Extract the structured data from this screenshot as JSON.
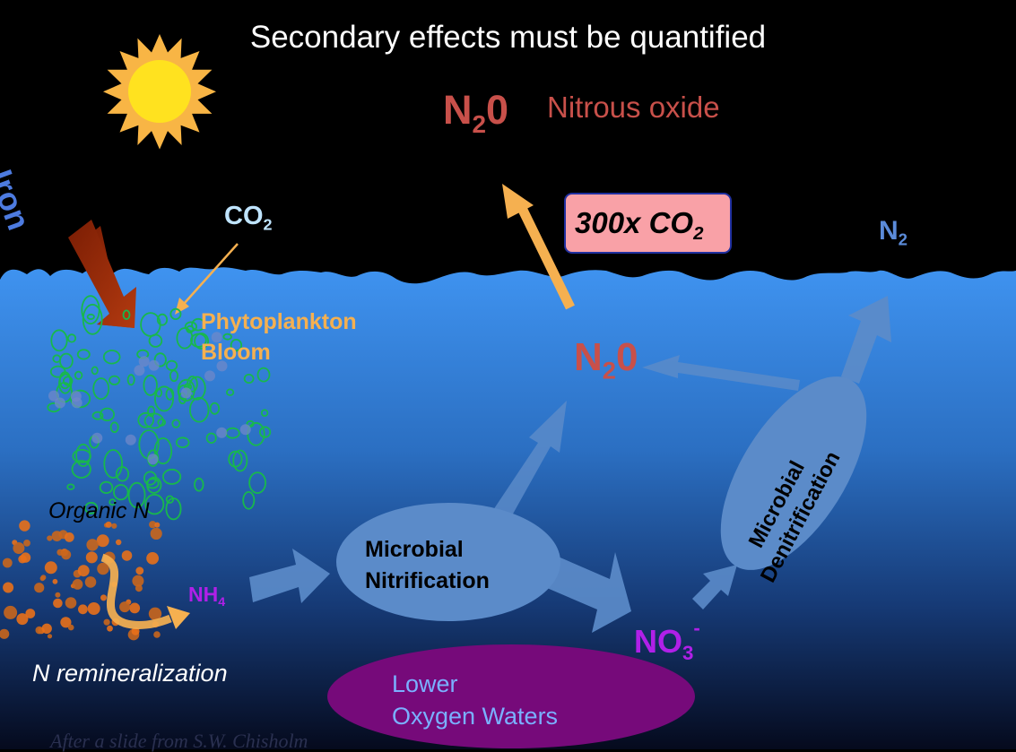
{
  "title": "Secondary effects must be quantified",
  "iron_label": "Iron",
  "co2_air": {
    "base": "CO",
    "sub": "2"
  },
  "n2o_top": {
    "base": "N",
    "sub": "2",
    "tail": "0",
    "name": "Nitrous oxide"
  },
  "co2_equiv_box": {
    "prefix": "300x CO",
    "sub": "2"
  },
  "n2_top": {
    "base": "N",
    "sub": "2"
  },
  "phytoplankton": {
    "line1": "Phytoplankton",
    "line2": "Bloom"
  },
  "n2o_mid": {
    "base": "N",
    "sub": "2",
    "tail": "0"
  },
  "organic_n": "Organic N",
  "nh4": {
    "base": "NH",
    "sub": "4"
  },
  "nitrification": {
    "line1": "Microbial",
    "line2": "Nitrification"
  },
  "denitrification": {
    "line1": "Microbial",
    "line2": "Denitrification"
  },
  "no3": {
    "base": "NO",
    "sub": "3",
    "sup": "-"
  },
  "n_remin": "N remineralization",
  "lower_oxygen": {
    "line1": "Lower",
    "line2": "Oxygen Waters"
  },
  "credit": "After a slide from S.W. Chisholm",
  "colors": {
    "sky": "#000000",
    "ocean_top": "#3f93f0",
    "ocean_bottom": "#070d24",
    "sun": "#ffe21f",
    "sun_rays": "#f8b545",
    "iron_arrow": "#9b2a07",
    "iron_text": "#4d7be0",
    "flow_blue": "#5b8bc9",
    "orange": "#f5b050",
    "n2o_red": "#c8504a",
    "purple_text": "#b020e8",
    "lower_oxygen_fill": "#760a7a",
    "bloom_green": "#18b84c",
    "remin_orange": "#e8701a"
  }
}
